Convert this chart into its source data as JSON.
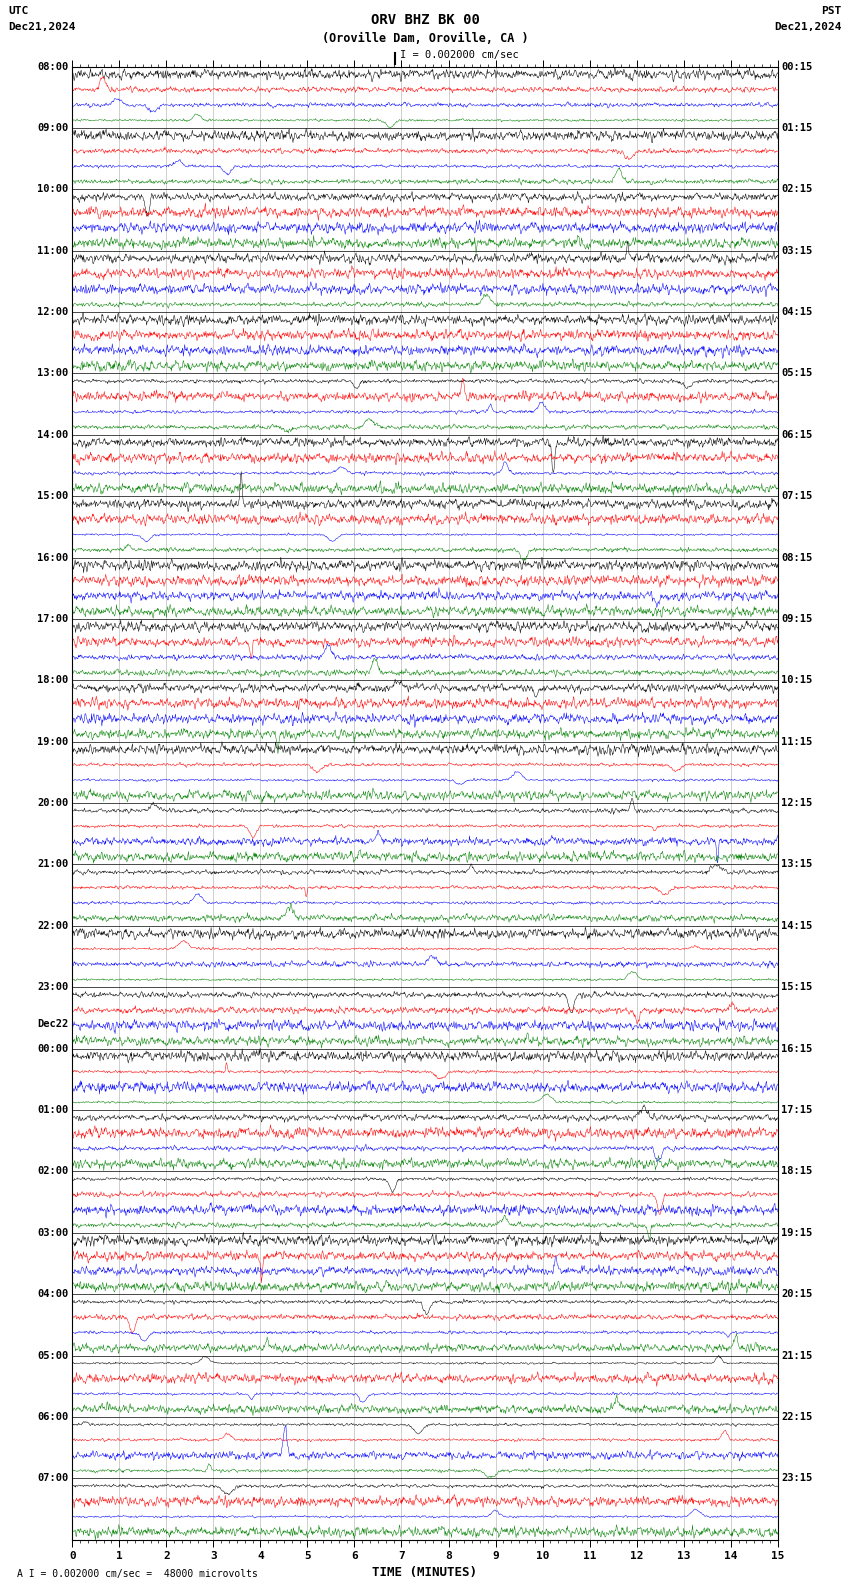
{
  "title_line1": "ORV BHZ BK 00",
  "title_line2": "(Oroville Dam, Oroville, CA )",
  "scale_label": "I = 0.002000 cm/sec",
  "footer_label": "A I = 0.002000 cm/sec =  48000 microvolts",
  "utc_label": "UTC",
  "pst_label": "PST",
  "date_left": "Dec21,2024",
  "date_right": "Dec21,2024",
  "xlabel": "TIME (MINUTES)",
  "x_ticks_major": [
    0,
    1,
    2,
    3,
    4,
    5,
    6,
    7,
    8,
    9,
    10,
    11,
    12,
    13,
    14,
    15
  ],
  "time_minutes": 15,
  "colors": [
    "black",
    "red",
    "blue",
    "green"
  ],
  "left_times": [
    "08:00",
    "09:00",
    "10:00",
    "11:00",
    "12:00",
    "13:00",
    "14:00",
    "15:00",
    "16:00",
    "17:00",
    "18:00",
    "19:00",
    "20:00",
    "21:00",
    "22:00",
    "23:00",
    "Dec22\n00:00",
    "01:00",
    "02:00",
    "03:00",
    "04:00",
    "05:00",
    "06:00",
    "07:00"
  ],
  "right_times": [
    "00:15",
    "01:15",
    "02:15",
    "03:15",
    "04:15",
    "05:15",
    "06:15",
    "07:15",
    "08:15",
    "09:15",
    "10:15",
    "11:15",
    "12:15",
    "13:15",
    "14:15",
    "15:15",
    "16:15",
    "17:15",
    "18:15",
    "19:15",
    "20:15",
    "21:15",
    "22:15",
    "23:15"
  ],
  "num_rows": 24,
  "traces_per_row": 4,
  "background_color": "white",
  "grid_color": "#888888",
  "fig_width": 8.5,
  "fig_height": 15.84
}
